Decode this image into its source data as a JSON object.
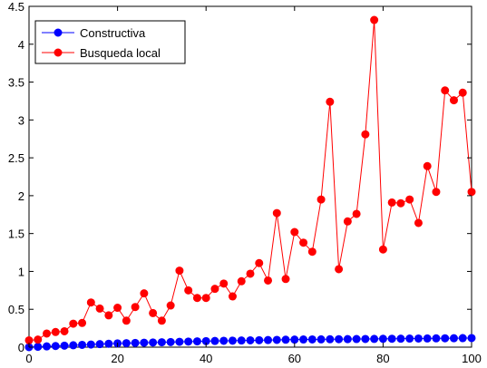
{
  "chart_data": {
    "type": "line",
    "title": "",
    "xlabel": "",
    "ylabel": "",
    "xlim": [
      0,
      100
    ],
    "ylim": [
      0,
      4.5
    ],
    "xticks": [
      0,
      20,
      40,
      60,
      80,
      100
    ],
    "yticks": [
      0,
      0.5,
      1,
      1.5,
      2,
      2.5,
      3,
      3.5,
      4,
      4.5
    ],
    "xtick_labels": [
      "0",
      "20",
      "40",
      "60",
      "80",
      "100"
    ],
    "ytick_labels": [
      "0",
      "0.5",
      "1",
      "1.5",
      "2",
      "2.5",
      "3",
      "3.5",
      "4",
      "4.5"
    ],
    "grid": false,
    "legend_position": "top-left",
    "x": [
      0,
      2,
      4,
      6,
      8,
      10,
      12,
      14,
      16,
      18,
      20,
      22,
      24,
      26,
      28,
      30,
      32,
      34,
      36,
      38,
      40,
      42,
      44,
      46,
      48,
      50,
      52,
      54,
      56,
      58,
      60,
      62,
      64,
      66,
      68,
      70,
      72,
      74,
      76,
      78,
      80,
      82,
      84,
      86,
      88,
      90,
      92,
      94,
      96,
      98,
      100
    ],
    "series": [
      {
        "name": "Constructiva",
        "color": "#0000ff",
        "values": [
          0.0,
          0.005,
          0.01,
          0.015,
          0.02,
          0.025,
          0.03,
          0.035,
          0.04,
          0.045,
          0.05,
          0.053,
          0.056,
          0.059,
          0.062,
          0.065,
          0.068,
          0.071,
          0.074,
          0.077,
          0.08,
          0.082,
          0.084,
          0.086,
          0.088,
          0.09,
          0.092,
          0.094,
          0.096,
          0.098,
          0.1,
          0.101,
          0.102,
          0.103,
          0.104,
          0.105,
          0.106,
          0.107,
          0.108,
          0.109,
          0.11,
          0.111,
          0.112,
          0.113,
          0.114,
          0.115,
          0.116,
          0.117,
          0.118,
          0.119,
          0.12
        ]
      },
      {
        "name": "Busqueda local",
        "color": "#ff0000",
        "values": [
          0.09,
          0.1,
          0.18,
          0.2,
          0.21,
          0.31,
          0.32,
          0.59,
          0.51,
          0.42,
          0.52,
          0.35,
          0.53,
          0.71,
          0.45,
          0.35,
          0.55,
          1.01,
          0.75,
          0.65,
          0.65,
          0.77,
          0.84,
          0.67,
          0.87,
          0.97,
          1.11,
          0.88,
          1.77,
          0.9,
          1.52,
          1.38,
          1.26,
          1.95,
          3.24,
          1.03,
          1.66,
          1.76,
          2.81,
          4.32,
          1.29,
          1.91,
          1.9,
          1.95,
          1.64,
          2.39,
          2.05,
          3.39,
          3.26,
          3.36,
          2.05
        ]
      }
    ]
  }
}
